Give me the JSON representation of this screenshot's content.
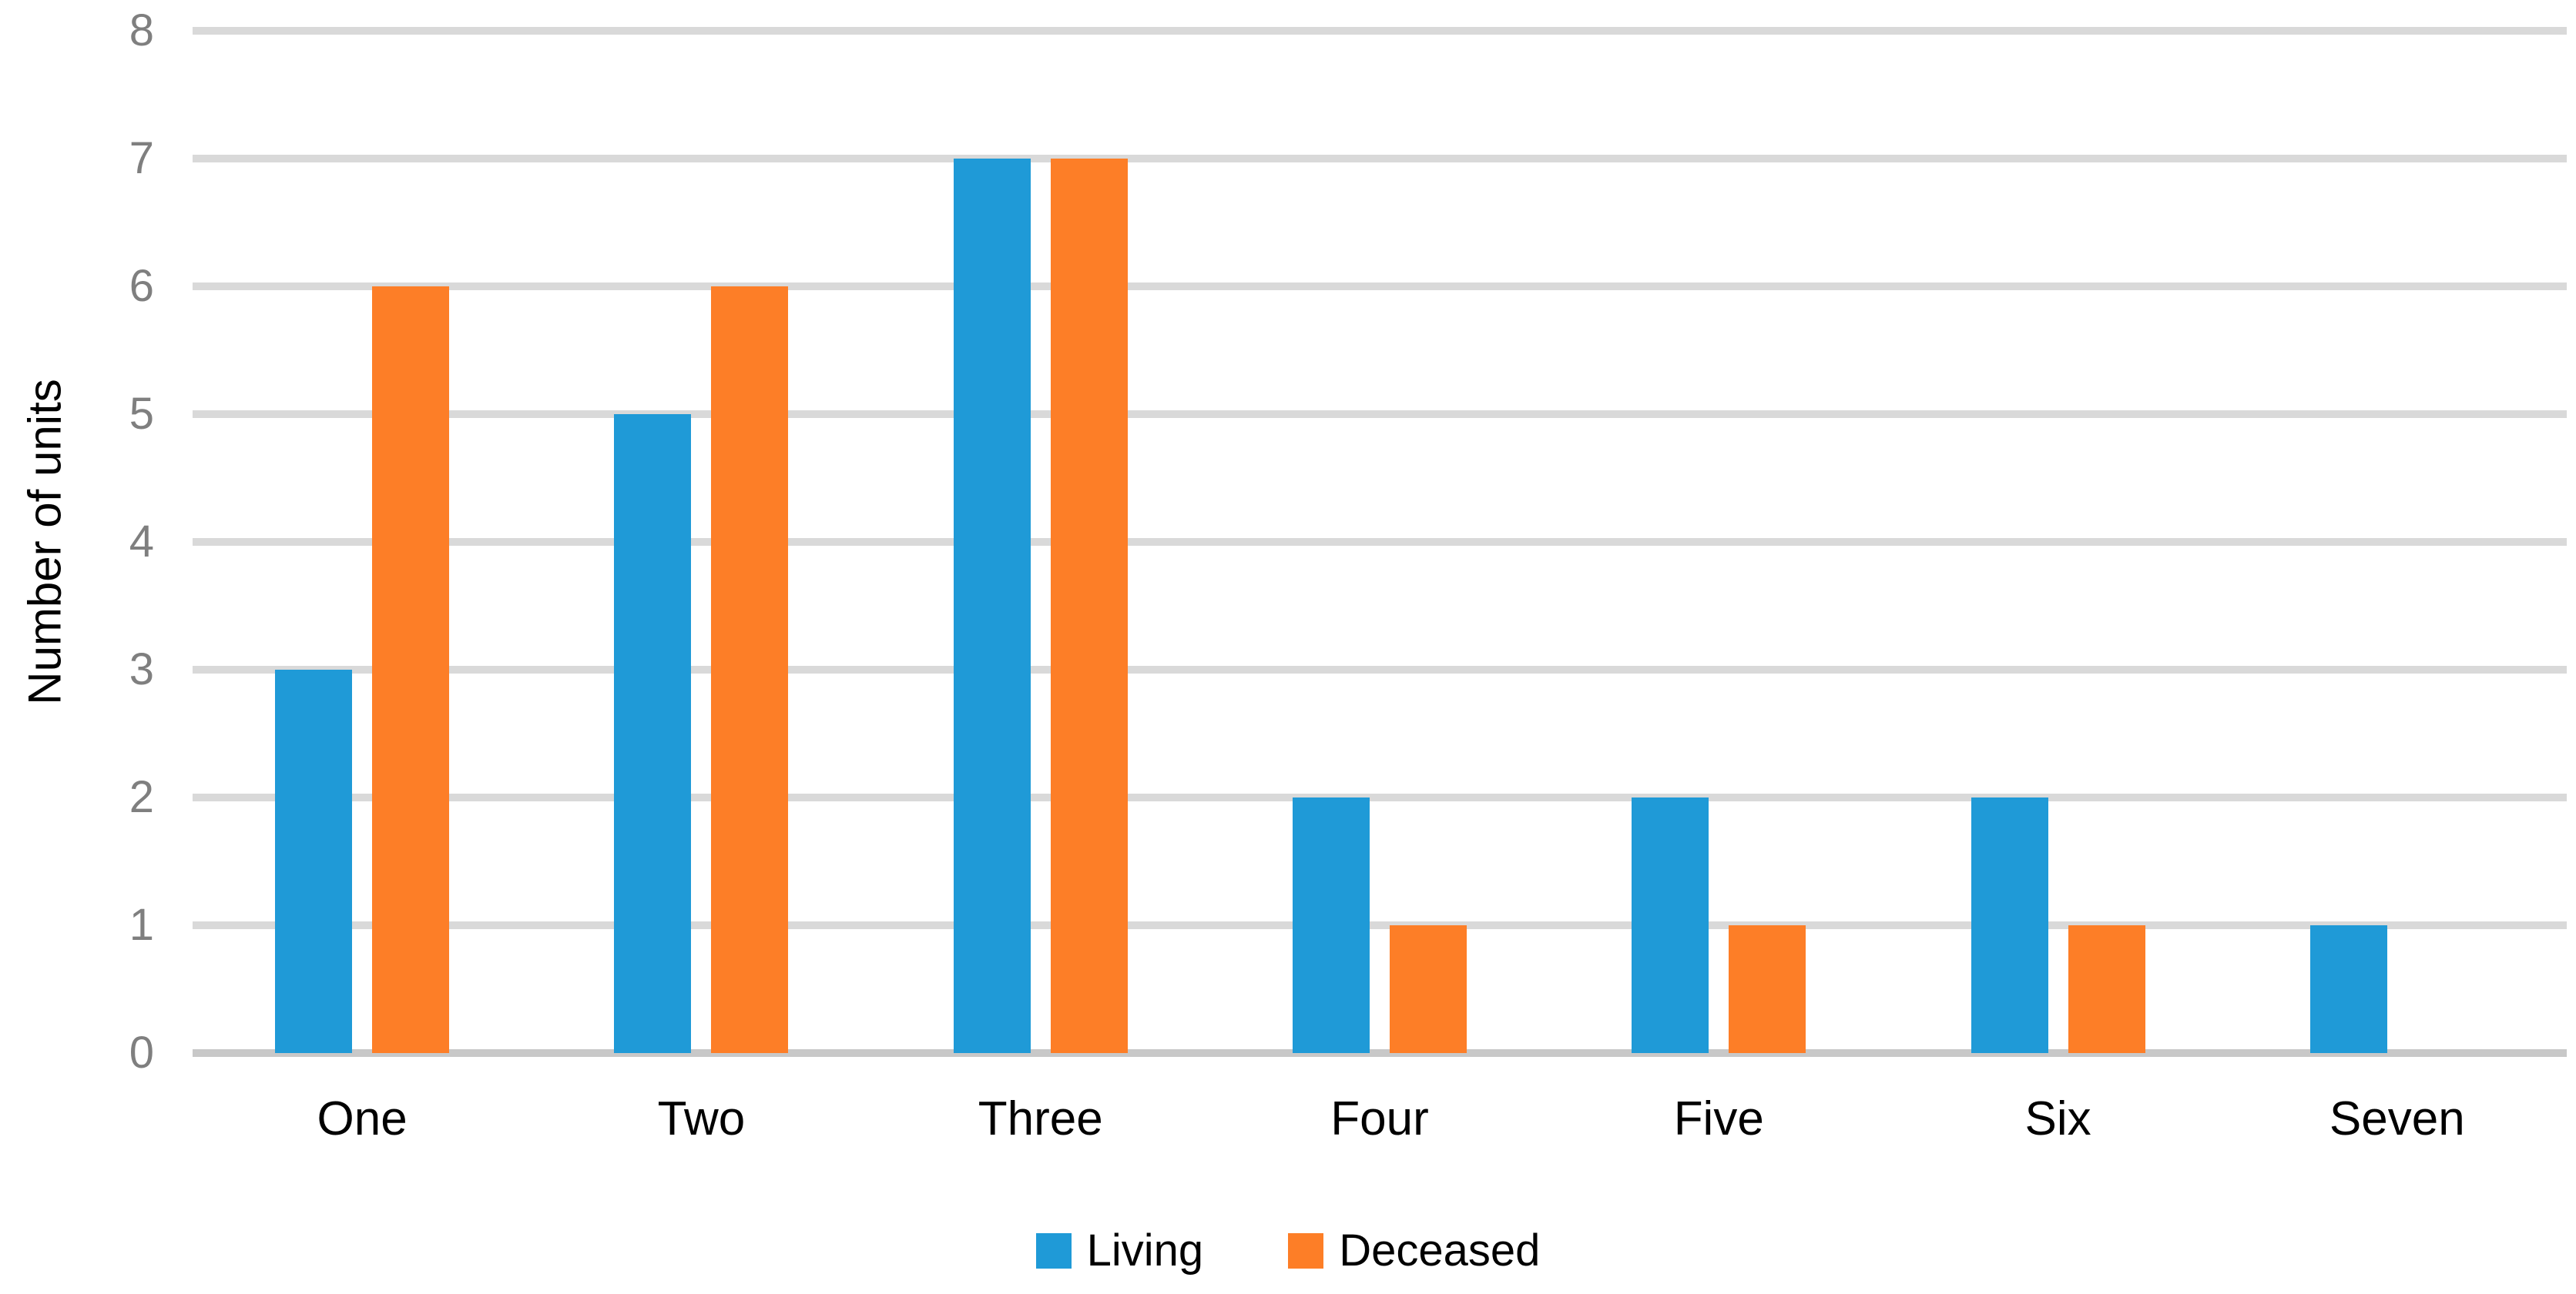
{
  "chart_data": {
    "type": "bar",
    "title": "",
    "xlabel": "",
    "ylabel": "Number of units",
    "categories": [
      "One",
      "Two",
      "Three",
      "Four",
      "Five",
      "Six",
      "Seven"
    ],
    "series": [
      {
        "name": "Living",
        "color": "#1f9ad7",
        "values": [
          3,
          5,
          7,
          2,
          2,
          2,
          1
        ]
      },
      {
        "name": "Deceased",
        "color": "#fd7e27",
        "values": [
          6,
          6,
          7,
          1,
          1,
          1,
          0
        ]
      }
    ],
    "ylim": [
      0,
      8
    ],
    "ytick_step": 1,
    "ytick_labels": [
      "0",
      "1",
      "2",
      "3",
      "4",
      "5",
      "6",
      "7",
      "8"
    ],
    "grid": "horizontal-on",
    "legend_position": "bottom-center",
    "colors": {
      "gridline": "#d9d9d9",
      "axis_line": "#c8c8c8",
      "ytick_label": "#7f7f7f",
      "text": "#000000",
      "background": "#ffffff"
    }
  }
}
